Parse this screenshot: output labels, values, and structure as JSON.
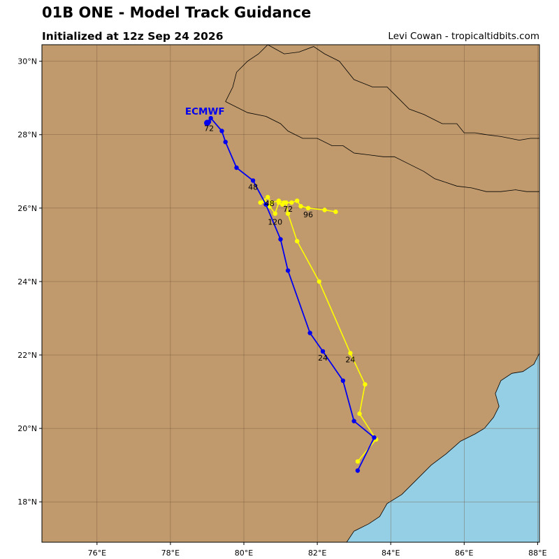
{
  "header": {
    "title": "01B ONE - Model Track Guidance",
    "subtitle": "Initialized at 12z Sep 24 2026",
    "credit": "Levi Cowan - tropicaltidbits.com"
  },
  "map": {
    "lon_range": [
      74.5,
      88.05
    ],
    "lat_range": [
      16.9,
      30.45
    ],
    "lon_ticks": [
      {
        "value": 76,
        "label": "76°E"
      },
      {
        "value": 78,
        "label": "78°E"
      },
      {
        "value": 80,
        "label": "80°E"
      },
      {
        "value": 82,
        "label": "82°E"
      },
      {
        "value": 84,
        "label": "84°E"
      },
      {
        "value": 86,
        "label": "86°E"
      },
      {
        "value": 88,
        "label": "88°E"
      }
    ],
    "lat_ticks": [
      {
        "value": 18,
        "label": "18°N"
      },
      {
        "value": 20,
        "label": "20°N"
      },
      {
        "value": 22,
        "label": "22°N"
      },
      {
        "value": 24,
        "label": "24°N"
      },
      {
        "value": 26,
        "label": "26°N"
      },
      {
        "value": 28,
        "label": "28°N"
      },
      {
        "value": 30,
        "label": "30°N"
      }
    ],
    "colors": {
      "land": "#c09a6d",
      "water": "#95cfe5",
      "grid": "#6b4a32",
      "border": "#000000"
    },
    "coastline": [
      [
        82.8,
        16.9
      ],
      [
        83.0,
        17.2
      ],
      [
        83.4,
        17.4
      ],
      [
        83.7,
        17.6
      ],
      [
        83.9,
        17.95
      ],
      [
        84.3,
        18.2
      ],
      [
        84.7,
        18.6
      ],
      [
        85.1,
        19.0
      ],
      [
        85.5,
        19.3
      ],
      [
        85.9,
        19.65
      ],
      [
        86.3,
        19.85
      ],
      [
        86.55,
        20.0
      ],
      [
        86.8,
        20.3
      ],
      [
        86.95,
        20.6
      ],
      [
        86.85,
        20.95
      ],
      [
        87.0,
        21.3
      ],
      [
        87.3,
        21.5
      ],
      [
        87.6,
        21.55
      ],
      [
        87.9,
        21.75
      ],
      [
        88.05,
        22.05
      ]
    ],
    "borders": [
      [
        [
          79.5,
          28.9
        ],
        [
          79.7,
          29.3
        ],
        [
          79.8,
          29.7
        ],
        [
          80.1,
          30.0
        ],
        [
          80.4,
          30.2
        ],
        [
          80.65,
          30.45
        ]
      ],
      [
        [
          79.5,
          28.9
        ],
        [
          80.1,
          28.6
        ],
        [
          80.6,
          28.5
        ],
        [
          81.0,
          28.3
        ],
        [
          81.2,
          28.1
        ],
        [
          81.6,
          27.9
        ],
        [
          82.0,
          27.9
        ],
        [
          82.4,
          27.7
        ],
        [
          82.7,
          27.7
        ],
        [
          83.0,
          27.5
        ],
        [
          83.4,
          27.45
        ],
        [
          83.8,
          27.4
        ],
        [
          84.1,
          27.4
        ],
        [
          84.5,
          27.2
        ],
        [
          84.9,
          27.0
        ],
        [
          85.2,
          26.8
        ],
        [
          85.5,
          26.7
        ],
        [
          85.8,
          26.6
        ],
        [
          86.2,
          26.55
        ],
        [
          86.6,
          26.45
        ],
        [
          87.0,
          26.45
        ],
        [
          87.4,
          26.5
        ],
        [
          87.7,
          26.45
        ],
        [
          88.05,
          26.45
        ]
      ],
      [
        [
          80.65,
          30.45
        ],
        [
          81.1,
          30.2
        ],
        [
          81.5,
          30.25
        ],
        [
          81.9,
          30.4
        ],
        [
          82.2,
          30.2
        ],
        [
          82.6,
          30.0
        ],
        [
          83.0,
          29.5
        ],
        [
          83.5,
          29.3
        ],
        [
          83.9,
          29.3
        ],
        [
          84.2,
          29.0
        ],
        [
          84.5,
          28.7
        ],
        [
          84.9,
          28.55
        ],
        [
          85.4,
          28.3
        ],
        [
          85.8,
          28.3
        ],
        [
          86.0,
          28.05
        ],
        [
          86.3,
          28.05
        ],
        [
          86.6,
          28.0
        ],
        [
          87.0,
          27.95
        ],
        [
          87.5,
          27.85
        ],
        [
          87.8,
          27.9
        ],
        [
          88.05,
          27.9
        ]
      ]
    ]
  },
  "tracks": [
    {
      "name": "ECMWF",
      "color": "#0000ee",
      "points": [
        [
          83.1,
          18.85
        ],
        [
          83.55,
          19.75
        ],
        [
          83.0,
          20.2
        ],
        [
          82.7,
          21.3
        ],
        [
          82.15,
          22.1
        ],
        [
          81.8,
          22.6
        ],
        [
          81.2,
          24.3
        ],
        [
          81.0,
          25.15
        ],
        [
          80.6,
          26.1
        ],
        [
          80.25,
          26.75
        ],
        [
          79.8,
          27.1
        ],
        [
          79.5,
          27.8
        ],
        [
          79.4,
          28.1
        ],
        [
          79.1,
          28.45
        ],
        [
          79.05,
          28.35
        ],
        [
          79.0,
          28.32
        ]
      ],
      "labels": [
        {
          "text": "24",
          "lon": 82.15,
          "lat": 21.85
        },
        {
          "text": "48",
          "lon": 80.25,
          "lat": 26.5
        },
        {
          "text": "72",
          "lon": 79.05,
          "lat": 28.1
        }
      ],
      "name_label": {
        "lon": 78.4,
        "lat": 28.55
      }
    },
    {
      "name": "",
      "color": "#ffff00",
      "points": [
        [
          83.1,
          19.1
        ],
        [
          83.6,
          19.7
        ],
        [
          83.15,
          20.4
        ],
        [
          83.3,
          21.2
        ],
        [
          82.9,
          22.05
        ],
        [
          82.05,
          24.0
        ],
        [
          81.45,
          25.1
        ],
        [
          81.2,
          25.85
        ],
        [
          81.15,
          26.15
        ],
        [
          80.95,
          26.2
        ],
        [
          80.75,
          26.15
        ],
        [
          80.65,
          26.3
        ],
        [
          80.45,
          26.15
        ],
        [
          80.55,
          26.2
        ],
        [
          80.7,
          26.05
        ],
        [
          80.85,
          25.85
        ],
        [
          80.95,
          26.15
        ],
        [
          81.05,
          26.1
        ],
        [
          81.1,
          26.15
        ],
        [
          81.3,
          26.15
        ],
        [
          81.45,
          26.2
        ],
        [
          81.55,
          26.05
        ],
        [
          81.75,
          26.0
        ],
        [
          82.2,
          25.95
        ],
        [
          82.5,
          25.9
        ]
      ],
      "labels": [
        {
          "text": "24",
          "lon": 82.9,
          "lat": 21.8
        },
        {
          "text": "72",
          "lon": 81.2,
          "lat": 25.9
        },
        {
          "text": "96",
          "lon": 81.75,
          "lat": 25.75
        },
        {
          "text": "120",
          "lon": 80.85,
          "lat": 25.55
        },
        {
          "text": "48",
          "lon": 80.7,
          "lat": 26.05
        }
      ]
    }
  ]
}
